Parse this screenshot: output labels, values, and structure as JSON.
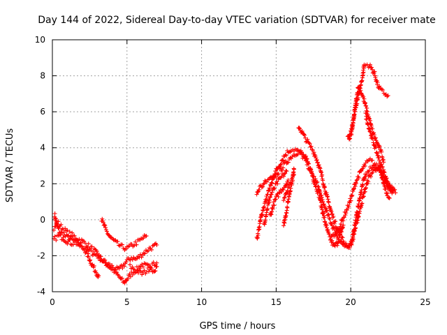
{
  "chart_data": {
    "type": "scatter",
    "title": "Day 144 of 2022, Sidereal Day-to-day VTEC variation (SDTVAR) for receiver mate",
    "xlabel": "GPS time / hours",
    "ylabel": "SDTVAR / TECUs",
    "xlim": [
      0,
      25
    ],
    "ylim": [
      -4,
      10
    ],
    "xticks": [
      0,
      5,
      10,
      15,
      20,
      25
    ],
    "yticks": [
      -4,
      -2,
      0,
      2,
      4,
      6,
      8,
      10
    ],
    "grid": true,
    "marker": "+",
    "color": "#ff0000",
    "series": [
      {
        "name": "SDTVAR",
        "traces": [
          [
            [
              0.15,
              0.3
            ],
            [
              0.3,
              -0.3
            ],
            [
              0.5,
              -0.7
            ],
            [
              0.8,
              -0.9
            ],
            [
              1.1,
              -1.0
            ],
            [
              1.5,
              -1.2
            ],
            [
              1.9,
              -1.4
            ],
            [
              2.3,
              -1.6
            ],
            [
              2.6,
              -1.8
            ],
            [
              3.0,
              -2.0
            ],
            [
              3.4,
              -2.3
            ],
            [
              3.8,
              -2.6
            ],
            [
              4.2,
              -2.9
            ],
            [
              4.5,
              -3.2
            ],
            [
              4.8,
              -3.5
            ],
            [
              5.0,
              -3.3
            ],
            [
              5.3,
              -3.0
            ],
            [
              5.6,
              -2.8
            ],
            [
              6.0,
              -2.5
            ],
            [
              6.4,
              -2.6
            ],
            [
              6.8,
              -2.8
            ],
            [
              7.0,
              -2.6
            ]
          ],
          [
            [
              0.1,
              -0.5
            ],
            [
              0.4,
              -0.2
            ],
            [
              0.7,
              -0.5
            ],
            [
              1.0,
              -0.7
            ],
            [
              1.4,
              -0.9
            ],
            [
              1.8,
              -1.1
            ],
            [
              2.2,
              -1.3
            ],
            [
              2.5,
              -1.5
            ],
            [
              2.8,
              -1.7
            ],
            [
              3.1,
              -2.0
            ],
            [
              3.3,
              -2.2
            ],
            [
              3.6,
              -2.4
            ],
            [
              4.0,
              -2.6
            ],
            [
              4.4,
              -2.8
            ],
            [
              4.7,
              -2.6
            ],
            [
              5.0,
              -2.3
            ],
            [
              5.3,
              -2.1
            ],
            [
              5.6,
              -2.2
            ],
            [
              5.9,
              -2.0
            ],
            [
              6.2,
              -1.8
            ],
            [
              6.5,
              -1.6
            ],
            [
              6.8,
              -1.5
            ],
            [
              7.0,
              -1.4
            ]
          ],
          [
            [
              0.1,
              -1.1
            ],
            [
              0.4,
              -0.9
            ],
            [
              0.7,
              -1.0
            ],
            [
              1.0,
              -1.2
            ],
            [
              1.3,
              -1.3
            ],
            [
              1.6,
              -1.3
            ],
            [
              1.9,
              -1.5
            ],
            [
              2.2,
              -1.7
            ],
            [
              2.4,
              -2.0
            ],
            [
              2.6,
              -2.4
            ],
            [
              2.8,
              -2.7
            ],
            [
              3.0,
              -3.0
            ],
            [
              3.1,
              -3.1
            ]
          ],
          [
            [
              3.3,
              0.0
            ],
            [
              3.6,
              -0.6
            ],
            [
              3.9,
              -1.0
            ],
            [
              4.3,
              -1.3
            ],
            [
              4.6,
              -1.5
            ],
            [
              5.0,
              -1.6
            ],
            [
              5.4,
              -1.4
            ],
            [
              5.8,
              -1.2
            ],
            [
              6.1,
              -1.0
            ],
            [
              6.3,
              -0.9
            ]
          ],
          [
            [
              5.2,
              -2.6
            ],
            [
              5.6,
              -2.8
            ],
            [
              6.0,
              -3.0
            ],
            [
              6.4,
              -2.8
            ],
            [
              6.7,
              -2.5
            ],
            [
              7.0,
              -2.4
            ]
          ],
          [
            [
              13.7,
              -1.1
            ],
            [
              13.85,
              -0.5
            ],
            [
              14.0,
              0.2
            ],
            [
              14.2,
              0.8
            ],
            [
              14.5,
              1.6
            ],
            [
              14.8,
              2.2
            ],
            [
              15.1,
              2.6
            ],
            [
              15.4,
              2.9
            ],
            [
              15.7,
              3.2
            ],
            [
              16.0,
              3.5
            ],
            [
              16.3,
              3.7
            ],
            [
              16.6,
              3.8
            ],
            [
              17.0,
              3.4
            ],
            [
              17.3,
              2.8
            ],
            [
              17.6,
              2.0
            ],
            [
              17.9,
              1.3
            ],
            [
              18.1,
              0.5
            ],
            [
              18.3,
              -0.2
            ],
            [
              18.5,
              -0.8
            ],
            [
              18.7,
              -1.2
            ],
            [
              18.9,
              -1.5
            ],
            [
              19.1,
              -1.3
            ],
            [
              19.3,
              -0.8
            ],
            [
              19.5,
              -0.3
            ]
          ],
          [
            [
              13.7,
              1.4
            ],
            [
              13.9,
              1.8
            ],
            [
              14.1,
              1.9
            ],
            [
              14.3,
              2.1
            ],
            [
              14.6,
              2.3
            ],
            [
              14.9,
              2.6
            ],
            [
              15.2,
              3.0
            ],
            [
              15.5,
              3.5
            ],
            [
              15.8,
              3.8
            ],
            [
              16.0,
              3.9
            ],
            [
              16.3,
              3.9
            ],
            [
              16.6,
              3.7
            ],
            [
              16.9,
              3.4
            ],
            [
              17.2,
              2.9
            ],
            [
              17.5,
              2.4
            ],
            [
              17.8,
              1.9
            ],
            [
              18.0,
              1.3
            ],
            [
              18.3,
              0.6
            ],
            [
              18.6,
              0.0
            ],
            [
              18.9,
              -0.6
            ],
            [
              19.2,
              -1.1
            ],
            [
              19.5,
              -1.4
            ],
            [
              19.8,
              -1.6
            ],
            [
              20.0,
              -1.4
            ],
            [
              20.2,
              -0.6
            ],
            [
              20.4,
              0.3
            ],
            [
              20.6,
              1.2
            ],
            [
              20.8,
              2.0
            ],
            [
              21.0,
              2.5
            ],
            [
              21.3,
              2.8
            ],
            [
              21.6,
              3.0
            ],
            [
              21.9,
              2.9
            ],
            [
              22.1,
              2.6
            ],
            [
              22.3,
              2.2
            ],
            [
              22.5,
              1.8
            ],
            [
              22.7,
              1.5
            ],
            [
              22.9,
              1.6
            ]
          ],
          [
            [
              14.2,
              -0.2
            ],
            [
              14.4,
              0.6
            ],
            [
              14.6,
              1.3
            ],
            [
              14.9,
              1.8
            ],
            [
              15.2,
              2.2
            ],
            [
              15.5,
              2.5
            ],
            [
              15.7,
              2.7
            ]
          ],
          [
            [
              14.6,
              0.2
            ],
            [
              14.8,
              0.8
            ],
            [
              15.0,
              1.2
            ],
            [
              15.3,
              1.6
            ],
            [
              15.6,
              1.9
            ],
            [
              15.8,
              2.2
            ]
          ],
          [
            [
              15.5,
              -0.3
            ],
            [
              15.7,
              0.5
            ],
            [
              15.9,
              1.5
            ],
            [
              16.1,
              2.3
            ],
            [
              16.2,
              2.8
            ]
          ],
          [
            [
              15.5,
              1.2
            ],
            [
              15.8,
              1.8
            ],
            [
              16.0,
              2.1
            ],
            [
              16.2,
              2.5
            ]
          ],
          [
            [
              16.5,
              5.2
            ],
            [
              16.7,
              4.9
            ],
            [
              16.9,
              4.6
            ],
            [
              17.2,
              4.2
            ],
            [
              17.5,
              3.8
            ],
            [
              17.7,
              3.4
            ],
            [
              17.9,
              2.9
            ],
            [
              18.1,
              2.3
            ],
            [
              18.3,
              1.6
            ],
            [
              18.5,
              1.0
            ],
            [
              18.7,
              0.4
            ],
            [
              19.0,
              -0.3
            ],
            [
              19.3,
              -0.9
            ],
            [
              19.6,
              -1.3
            ],
            [
              19.9,
              -1.5
            ],
            [
              20.1,
              -1.2
            ],
            [
              20.3,
              -0.5
            ],
            [
              20.6,
              0.5
            ],
            [
              20.9,
              1.5
            ],
            [
              21.2,
              2.3
            ],
            [
              21.5,
              2.7
            ],
            [
              21.8,
              2.9
            ],
            [
              22.0,
              2.6
            ],
            [
              22.2,
              2.0
            ],
            [
              22.4,
              1.5
            ],
            [
              22.6,
              1.2
            ]
          ],
          [
            [
              18.7,
              -1.0
            ],
            [
              19.0,
              -0.7
            ],
            [
              19.3,
              -0.3
            ],
            [
              19.6,
              0.3
            ],
            [
              19.9,
              0.9
            ],
            [
              20.1,
              1.4
            ],
            [
              20.3,
              2.0
            ],
            [
              20.5,
              2.4
            ],
            [
              20.7,
              2.7
            ],
            [
              21.0,
              3.1
            ],
            [
              21.3,
              3.3
            ],
            [
              21.6,
              3.1
            ],
            [
              21.9,
              2.8
            ],
            [
              22.2,
              2.4
            ],
            [
              22.5,
              2.0
            ],
            [
              22.8,
              1.7
            ],
            [
              23.0,
              1.5
            ]
          ],
          [
            [
              19.8,
              4.5
            ],
            [
              20.0,
              4.8
            ],
            [
              20.2,
              5.6
            ],
            [
              20.4,
              6.5
            ],
            [
              20.6,
              7.2
            ],
            [
              20.8,
              8.0
            ],
            [
              20.9,
              8.6
            ],
            [
              21.2,
              8.6
            ],
            [
              21.4,
              8.4
            ],
            [
              21.6,
              8.1
            ],
            [
              21.8,
              7.5
            ],
            [
              22.0,
              7.2
            ],
            [
              22.3,
              7.0
            ],
            [
              22.5,
              6.9
            ]
          ],
          [
            [
              19.9,
              4.4
            ],
            [
              20.1,
              5.0
            ],
            [
              20.3,
              6.3
            ],
            [
              20.5,
              7.4
            ],
            [
              20.7,
              7.1
            ],
            [
              20.9,
              6.6
            ],
            [
              21.1,
              6.0
            ],
            [
              21.3,
              5.4
            ],
            [
              21.5,
              4.8
            ],
            [
              21.7,
              4.4
            ],
            [
              21.9,
              4.0
            ],
            [
              22.1,
              3.6
            ],
            [
              22.2,
              3.2
            ]
          ],
          [
            [
              21.0,
              5.8
            ],
            [
              21.2,
              5.2
            ],
            [
              21.4,
              4.6
            ],
            [
              21.6,
              4.1
            ],
            [
              21.8,
              3.6
            ],
            [
              22.0,
              3.1
            ],
            [
              22.2,
              2.7
            ],
            [
              22.4,
              2.2
            ],
            [
              22.6,
              1.9
            ],
            [
              22.8,
              1.6
            ]
          ]
        ]
      }
    ]
  }
}
